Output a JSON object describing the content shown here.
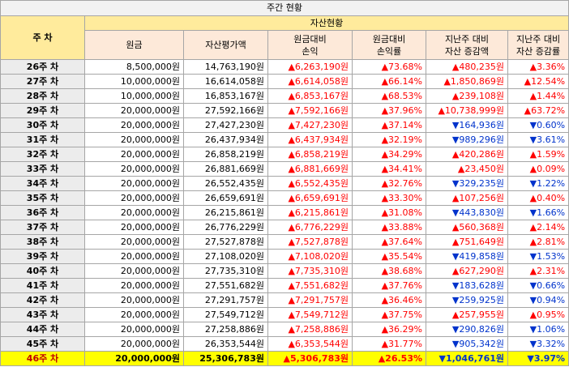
{
  "title": "주간 현황",
  "headers": {
    "week": "주 차",
    "asset_status": "자산현황",
    "principal": "원금",
    "valuation": "자산평가액",
    "pl_line1": "원금대비",
    "pl_line2": "손익",
    "plrate_line1": "원금대비",
    "plrate_line2": "손익률",
    "chg_line1": "지난주 대비",
    "chg_line2": "자산 증감액",
    "chgrate_line1": "지난주 대비",
    "chgrate_line2": "자산 증감률"
  },
  "colors": {
    "up": "#ff0000",
    "down": "#0033cc",
    "highlight": "#ffff00",
    "header": "#ffeb9c"
  },
  "rows": [
    {
      "week": "26주 차",
      "principal": "8,500,000원",
      "valuation": "14,763,190원",
      "pl": "▲6,263,190원",
      "plrate": "▲73.68%",
      "chg": "▲480,235원",
      "chg_dir": "up",
      "chgrate": "▲3.36%",
      "chgrate_dir": "up"
    },
    {
      "week": "27주 차",
      "principal": "10,000,000원",
      "valuation": "16,614,058원",
      "pl": "▲6,614,058원",
      "plrate": "▲66.14%",
      "chg": "▲1,850,869원",
      "chg_dir": "up",
      "chgrate": "▲12.54%",
      "chgrate_dir": "up"
    },
    {
      "week": "28주 차",
      "principal": "10,000,000원",
      "valuation": "16,853,167원",
      "pl": "▲6,853,167원",
      "plrate": "▲68.53%",
      "chg": "▲239,108원",
      "chg_dir": "up",
      "chgrate": "▲1.44%",
      "chgrate_dir": "up"
    },
    {
      "week": "29주 차",
      "principal": "20,000,000원",
      "valuation": "27,592,166원",
      "pl": "▲7,592,166원",
      "plrate": "▲37.96%",
      "chg": "▲10,738,999원",
      "chg_dir": "up",
      "chgrate": "▲63.72%",
      "chgrate_dir": "up"
    },
    {
      "week": "30주 차",
      "principal": "20,000,000원",
      "valuation": "27,427,230원",
      "pl": "▲7,427,230원",
      "plrate": "▲37.14%",
      "chg": "▼164,936원",
      "chg_dir": "down",
      "chgrate": "▼0.60%",
      "chgrate_dir": "down"
    },
    {
      "week": "31주 차",
      "principal": "20,000,000원",
      "valuation": "26,437,934원",
      "pl": "▲6,437,934원",
      "plrate": "▲32.19%",
      "chg": "▼989,296원",
      "chg_dir": "down",
      "chgrate": "▼3.61%",
      "chgrate_dir": "down"
    },
    {
      "week": "32주 차",
      "principal": "20,000,000원",
      "valuation": "26,858,219원",
      "pl": "▲6,858,219원",
      "plrate": "▲34.29%",
      "chg": "▲420,286원",
      "chg_dir": "up",
      "chgrate": "▲1.59%",
      "chgrate_dir": "up"
    },
    {
      "week": "33주 차",
      "principal": "20,000,000원",
      "valuation": "26,881,669원",
      "pl": "▲6,881,669원",
      "plrate": "▲34.41%",
      "chg": "▲23,450원",
      "chg_dir": "up",
      "chgrate": "▲0.09%",
      "chgrate_dir": "up"
    },
    {
      "week": "34주 차",
      "principal": "20,000,000원",
      "valuation": "26,552,435원",
      "pl": "▲6,552,435원",
      "plrate": "▲32.76%",
      "chg": "▼329,235원",
      "chg_dir": "down",
      "chgrate": "▼1.22%",
      "chgrate_dir": "down"
    },
    {
      "week": "35주 차",
      "principal": "20,000,000원",
      "valuation": "26,659,691원",
      "pl": "▲6,659,691원",
      "plrate": "▲33.30%",
      "chg": "▲107,256원",
      "chg_dir": "up",
      "chgrate": "▲0.40%",
      "chgrate_dir": "up"
    },
    {
      "week": "36주 차",
      "principal": "20,000,000원",
      "valuation": "26,215,861원",
      "pl": "▲6,215,861원",
      "plrate": "▲31.08%",
      "chg": "▼443,830원",
      "chg_dir": "down",
      "chgrate": "▼1.66%",
      "chgrate_dir": "down"
    },
    {
      "week": "37주 차",
      "principal": "20,000,000원",
      "valuation": "26,776,229원",
      "pl": "▲6,776,229원",
      "plrate": "▲33.88%",
      "chg": "▲560,368원",
      "chg_dir": "up",
      "chgrate": "▲2.14%",
      "chgrate_dir": "up"
    },
    {
      "week": "38주 차",
      "principal": "20,000,000원",
      "valuation": "27,527,878원",
      "pl": "▲7,527,878원",
      "plrate": "▲37.64%",
      "chg": "▲751,649원",
      "chg_dir": "up",
      "chgrate": "▲2.81%",
      "chgrate_dir": "up"
    },
    {
      "week": "39주 차",
      "principal": "20,000,000원",
      "valuation": "27,108,020원",
      "pl": "▲7,108,020원",
      "plrate": "▲35.54%",
      "chg": "▼419,858원",
      "chg_dir": "down",
      "chgrate": "▼1.53%",
      "chgrate_dir": "down"
    },
    {
      "week": "40주 차",
      "principal": "20,000,000원",
      "valuation": "27,735,310원",
      "pl": "▲7,735,310원",
      "plrate": "▲38.68%",
      "chg": "▲627,290원",
      "chg_dir": "up",
      "chgrate": "▲2.31%",
      "chgrate_dir": "up"
    },
    {
      "week": "41주 차",
      "principal": "20,000,000원",
      "valuation": "27,551,682원",
      "pl": "▲7,551,682원",
      "plrate": "▲37.76%",
      "chg": "▼183,628원",
      "chg_dir": "down",
      "chgrate": "▼0.66%",
      "chgrate_dir": "down"
    },
    {
      "week": "42주 차",
      "principal": "20,000,000원",
      "valuation": "27,291,757원",
      "pl": "▲7,291,757원",
      "plrate": "▲36.46%",
      "chg": "▼259,925원",
      "chg_dir": "down",
      "chgrate": "▼0.94%",
      "chgrate_dir": "down"
    },
    {
      "week": "43주 차",
      "principal": "20,000,000원",
      "valuation": "27,549,712원",
      "pl": "▲7,549,712원",
      "plrate": "▲37.75%",
      "chg": "▲257,955원",
      "chg_dir": "up",
      "chgrate": "▲0.95%",
      "chgrate_dir": "up"
    },
    {
      "week": "44주 차",
      "principal": "20,000,000원",
      "valuation": "27,258,886원",
      "pl": "▲7,258,886원",
      "plrate": "▲36.29%",
      "chg": "▼290,826원",
      "chg_dir": "down",
      "chgrate": "▼1.06%",
      "chgrate_dir": "down"
    },
    {
      "week": "45주 차",
      "principal": "20,000,000원",
      "valuation": "26,353,544원",
      "pl": "▲6,353,544원",
      "plrate": "▲31.77%",
      "chg": "▼905,342원",
      "chg_dir": "down",
      "chgrate": "▼3.32%",
      "chgrate_dir": "down"
    },
    {
      "week": "46주 차",
      "principal": "20,000,000원",
      "valuation": "25,306,783원",
      "pl": "▲5,306,783원",
      "plrate": "▲26.53%",
      "chg": "▼1,046,761원",
      "chg_dir": "down",
      "chgrate": "▼3.97%",
      "chgrate_dir": "down",
      "highlight": true
    }
  ]
}
